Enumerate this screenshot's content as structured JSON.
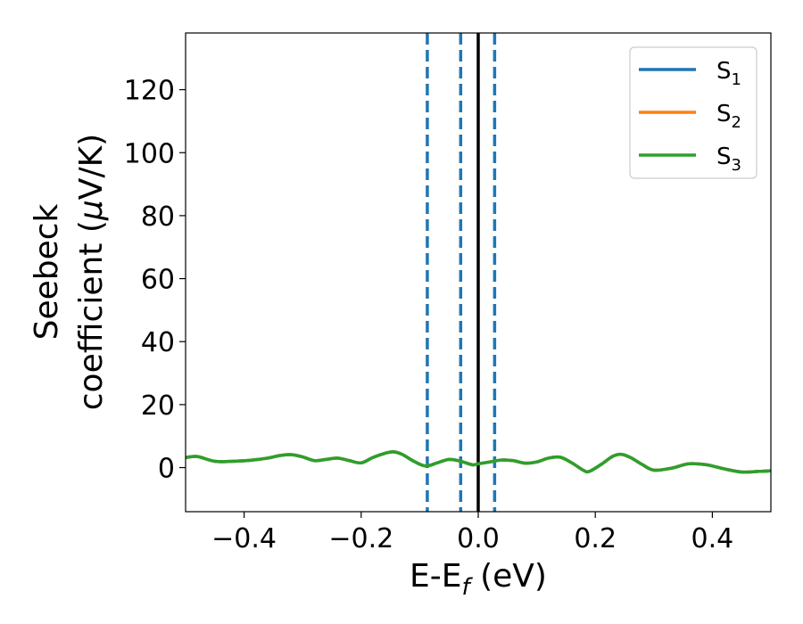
{
  "chart_data": {
    "type": "line",
    "xlabel": {
      "main": "E-E",
      "sub": "f",
      "rest": " (eV)"
    },
    "ylabel": {
      "line1": "Seebeck",
      "line2_a": "coefficient  (",
      "line2_mu": "μ",
      "line2_b": "V/K)"
    },
    "xlim": [
      -0.5,
      0.5
    ],
    "ylim": [
      -14,
      138
    ],
    "xticks": [
      -0.4,
      -0.2,
      0.0,
      0.2,
      0.4
    ],
    "xtick_labels": [
      "−0.4",
      "−0.2",
      "0.0",
      "0.2",
      "0.4"
    ],
    "yticks": [
      0,
      20,
      40,
      60,
      80,
      100,
      120
    ],
    "ytick_labels": [
      "0",
      "20",
      "40",
      "60",
      "80",
      "100",
      "120"
    ],
    "grid": false,
    "legend_position": "top-right",
    "series": [
      {
        "name": "S1",
        "legend_main": "S",
        "legend_sub": "1",
        "color": "#1f77b4",
        "x": [
          -0.5,
          -0.48,
          -0.45,
          -0.42,
          -0.39,
          -0.36,
          -0.34,
          -0.32,
          -0.3,
          -0.28,
          -0.26,
          -0.24,
          -0.22,
          -0.2,
          -0.18,
          -0.16,
          -0.145,
          -0.13,
          -0.11,
          -0.09,
          -0.07,
          -0.05,
          -0.03,
          -0.01,
          0.0,
          0.02,
          0.04,
          0.06,
          0.08,
          0.1,
          0.12,
          0.14,
          0.16,
          0.18,
          0.19,
          0.21,
          0.23,
          0.245,
          0.26,
          0.28,
          0.3,
          0.33,
          0.36,
          0.39,
          0.42,
          0.45,
          0.48,
          0.5
        ],
        "y": [
          3.2,
          3.5,
          2.0,
          2.0,
          2.3,
          3.0,
          3.8,
          4.1,
          3.4,
          2.2,
          2.6,
          3.0,
          2.2,
          1.5,
          3.2,
          4.5,
          5.0,
          4.2,
          2.0,
          0.5,
          1.5,
          2.6,
          2.0,
          0.9,
          1.2,
          1.8,
          2.4,
          2.2,
          1.4,
          1.8,
          3.0,
          3.3,
          1.5,
          -0.9,
          -1.2,
          1.0,
          3.6,
          4.2,
          3.2,
          1.0,
          -0.8,
          -0.2,
          1.2,
          0.9,
          -0.4,
          -1.4,
          -1.2,
          -1.0
        ]
      },
      {
        "name": "S2",
        "legend_main": "S",
        "legend_sub": "2",
        "color": "#ff7f0e",
        "x": [
          -0.5,
          -0.48,
          -0.45,
          -0.42,
          -0.39,
          -0.36,
          -0.34,
          -0.32,
          -0.3,
          -0.28,
          -0.26,
          -0.24,
          -0.22,
          -0.2,
          -0.18,
          -0.16,
          -0.145,
          -0.13,
          -0.11,
          -0.09,
          -0.07,
          -0.05,
          -0.03,
          -0.01,
          0.0,
          0.02,
          0.04,
          0.06,
          0.08,
          0.1,
          0.12,
          0.14,
          0.16,
          0.18,
          0.19,
          0.21,
          0.23,
          0.245,
          0.26,
          0.28,
          0.3,
          0.33,
          0.36,
          0.39,
          0.42,
          0.45,
          0.48,
          0.5
        ],
        "y": [
          3.2,
          3.5,
          2.0,
          2.0,
          2.3,
          3.0,
          3.8,
          4.1,
          3.4,
          2.2,
          2.6,
          3.0,
          2.2,
          1.5,
          3.2,
          4.5,
          5.0,
          4.2,
          2.0,
          0.5,
          1.5,
          2.6,
          2.0,
          0.9,
          1.2,
          1.8,
          2.4,
          2.2,
          1.4,
          1.8,
          3.0,
          3.3,
          1.5,
          -0.9,
          -1.2,
          1.0,
          3.6,
          4.2,
          3.2,
          1.0,
          -0.8,
          -0.2,
          1.2,
          0.9,
          -0.4,
          -1.4,
          -1.2,
          -1.0
        ]
      },
      {
        "name": "S3",
        "legend_main": "S",
        "legend_sub": "3",
        "color": "#2ca02c",
        "x": [
          -0.5,
          -0.48,
          -0.45,
          -0.42,
          -0.39,
          -0.36,
          -0.34,
          -0.32,
          -0.3,
          -0.28,
          -0.26,
          -0.24,
          -0.22,
          -0.2,
          -0.18,
          -0.16,
          -0.145,
          -0.13,
          -0.11,
          -0.09,
          -0.07,
          -0.05,
          -0.03,
          -0.01,
          0.0,
          0.02,
          0.04,
          0.06,
          0.08,
          0.1,
          0.12,
          0.14,
          0.16,
          0.18,
          0.19,
          0.21,
          0.23,
          0.245,
          0.26,
          0.28,
          0.3,
          0.33,
          0.36,
          0.39,
          0.42,
          0.45,
          0.48,
          0.5
        ],
        "y": [
          3.2,
          3.5,
          2.0,
          2.0,
          2.3,
          3.0,
          3.8,
          4.1,
          3.4,
          2.2,
          2.6,
          3.0,
          2.2,
          1.5,
          3.2,
          4.5,
          5.0,
          4.2,
          2.0,
          0.5,
          1.5,
          2.6,
          2.0,
          0.9,
          1.2,
          1.8,
          2.4,
          2.2,
          1.4,
          1.8,
          3.0,
          3.3,
          1.5,
          -0.9,
          -1.2,
          1.0,
          3.6,
          4.2,
          3.2,
          1.0,
          -0.8,
          -0.2,
          1.2,
          0.9,
          -0.4,
          -1.4,
          -1.2,
          -1.0
        ]
      }
    ],
    "vertical_lines": [
      {
        "x": -0.087,
        "style": "dashed",
        "color": "#1f77b4"
      },
      {
        "x": -0.03,
        "style": "dashed",
        "color": "#1f77b4"
      },
      {
        "x": 0.0,
        "style": "solid",
        "color": "#000000"
      },
      {
        "x": 0.028,
        "style": "dashed",
        "color": "#1f77b4"
      }
    ]
  }
}
